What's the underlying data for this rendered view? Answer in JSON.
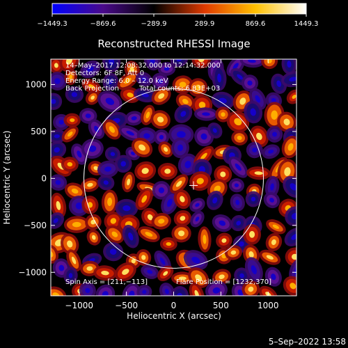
{
  "chart_data": {
    "type": "heatmap",
    "title": "Reconstructed RHESSI Image",
    "xlabel": "Heliocentric X (arcsec)",
    "ylabel": "Heliocentric Y (arcsec)",
    "xlim": [
      -1300,
      1300
    ],
    "ylim": [
      -1250,
      1270
    ],
    "xticks": [
      -1000,
      -500,
      0,
      500,
      1000
    ],
    "xtick_labels": [
      "−1000",
      "−500",
      "0",
      "500",
      "1000"
    ],
    "yticks": [
      -1000,
      -500,
      0,
      500,
      1000
    ],
    "ytick_labels": [
      "−1000",
      "−500",
      "0",
      "500",
      "1000"
    ],
    "colorbar": {
      "min": -1449.3,
      "max": 1449.3,
      "ticks": [
        -1449.3,
        -869.6,
        -289.9,
        289.9,
        869.6,
        1449.3
      ],
      "tick_labels": [
        "−1449.3",
        "−869.6",
        "−289.9",
        "289.9",
        "869.6",
        "1449.3"
      ],
      "colors": [
        "#0000ff",
        "#4a0a8a",
        "#000000",
        "#e03a00",
        "#ffc000",
        "#ffffff"
      ]
    },
    "solar_limb_radius_arcsec": 950,
    "flare_marker": {
      "x": 210,
      "y": -75
    },
    "annotations": [
      "14–May–2017 12:08:32.000 to 12:14:32.000",
      "Detectors: 6F 8F, Att 0",
      "Energy Range: 6.0 – 12.0 keV",
      "Back Projection",
      "Total counts: 6.83E+03"
    ],
    "footer_left": "Spin Axis = [211,−113]",
    "footer_right": "Flare Position = [1232,370]"
  },
  "timestamp": "5–Sep–2022 13:58"
}
